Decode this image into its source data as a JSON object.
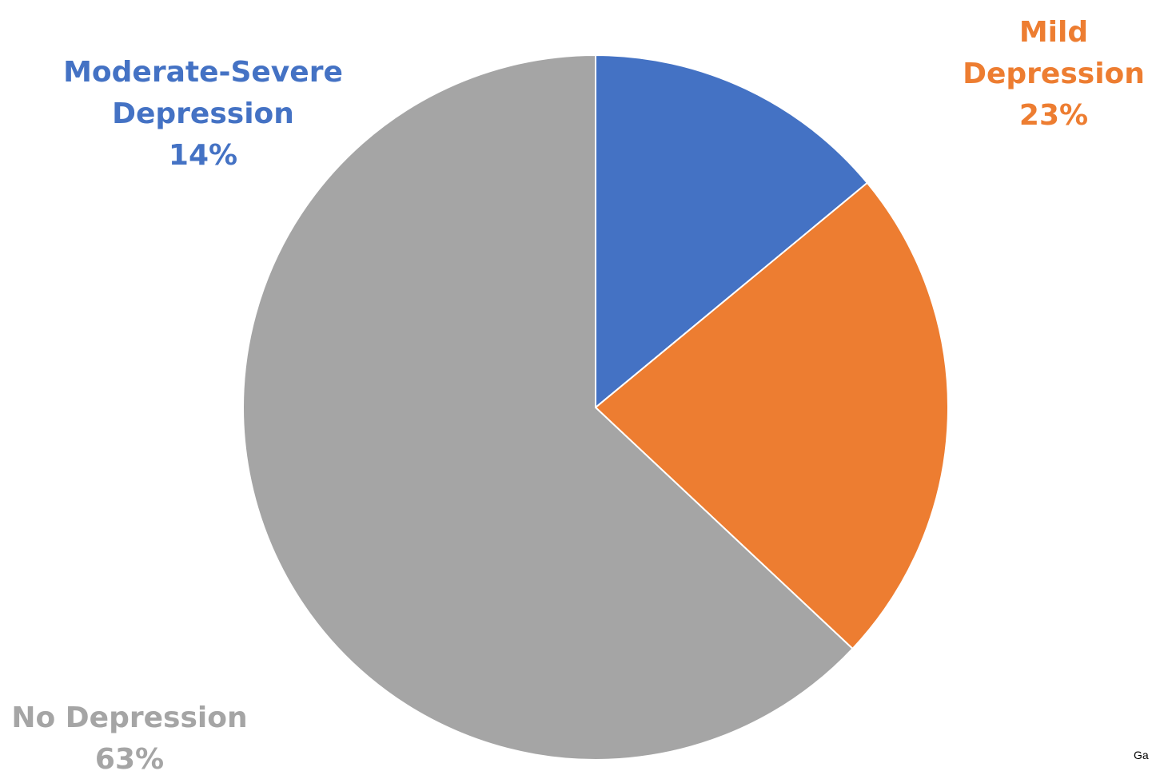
{
  "chart_data": {
    "type": "pie",
    "slices": [
      {
        "label_lines": [
          "Moderate-Severe",
          "Depression"
        ],
        "percent_label": "14%",
        "value": 14,
        "color": "#4472C4"
      },
      {
        "label_lines": [
          "Mild",
          "Depression"
        ],
        "percent_label": "23%",
        "value": 23,
        "color": "#ED7D31"
      },
      {
        "label_lines": [
          "No Depression"
        ],
        "percent_label": "63%",
        "value": 63,
        "color": "#A5A5A5"
      }
    ],
    "start_angle_deg": 0,
    "direction": "clockwise"
  },
  "footer_fragment": "Ga"
}
